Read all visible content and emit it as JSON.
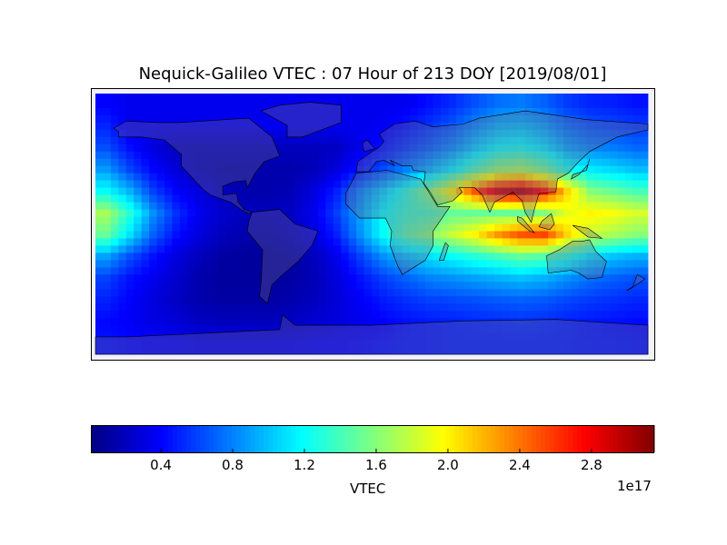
{
  "chart_data": {
    "type": "heatmap",
    "title": "Nequick-Galileo VTEC : 07 Hour of 213 DOY [2019/08/01]",
    "colormap": "jet",
    "colorbar": {
      "label": "VTEC",
      "exponent_label": "1e17",
      "range": [
        0.01,
        3.15
      ],
      "ticks": [
        "0.4",
        "0.8",
        "1.2",
        "1.6",
        "2.0",
        "2.4",
        "2.8"
      ],
      "tick_values": [
        0.4,
        0.8,
        1.2,
        1.6,
        2.0,
        2.4,
        2.8
      ],
      "orientation": "horizontal",
      "placement": "bottom"
    },
    "units_scale": 1e+17,
    "lon_range": [
      -180,
      180
    ],
    "lat_range": [
      -90,
      90
    ],
    "lon_centers": [
      -172.5,
      -157.5,
      -142.5,
      -127.5,
      -112.5,
      -97.5,
      -82.5,
      -67.5,
      -52.5,
      -37.5,
      -22.5,
      -7.5,
      7.5,
      22.5,
      37.5,
      52.5,
      67.5,
      82.5,
      97.5,
      112.5,
      127.5,
      142.5,
      157.5,
      172.5
    ],
    "lat_centers": [
      82.5,
      67.5,
      52.5,
      37.5,
      22.5,
      7.5,
      -7.5,
      -22.5,
      -37.5,
      -52.5,
      -67.5,
      -82.5
    ],
    "values": [
      [
        0.4,
        0.35,
        0.35,
        0.35,
        0.35,
        0.35,
        0.35,
        0.35,
        0.35,
        0.35,
        0.35,
        0.35,
        0.35,
        0.36,
        0.44,
        0.53,
        0.65,
        0.75,
        0.78,
        0.7,
        0.58,
        0.51,
        0.49,
        0.45
      ],
      [
        0.51,
        0.35,
        0.35,
        0.35,
        0.35,
        0.35,
        0.35,
        0.35,
        0.35,
        0.35,
        0.35,
        0.35,
        0.37,
        0.46,
        0.56,
        0.67,
        0.83,
        0.96,
        0.99,
        0.9,
        0.74,
        0.66,
        0.62,
        0.58
      ],
      [
        0.64,
        0.44,
        0.3,
        0.2,
        0.2,
        0.2,
        0.2,
        0.2,
        0.2,
        0.2,
        0.22,
        0.34,
        0.46,
        0.58,
        0.7,
        0.84,
        1.04,
        1.2,
        1.24,
        1.12,
        0.92,
        0.82,
        0.78,
        0.72
      ],
      [
        0.88,
        0.61,
        0.41,
        0.28,
        0.19,
        0.15,
        0.15,
        0.15,
        0.15,
        0.19,
        0.3,
        0.47,
        0.63,
        0.8,
        0.96,
        1.16,
        1.43,
        1.65,
        1.71,
        1.54,
        1.27,
        1.13,
        1.07,
        0.99
      ],
      [
        1.2,
        0.95,
        0.6,
        0.4,
        0.3,
        0.2,
        0.15,
        0.15,
        0.18,
        0.3,
        0.5,
        0.8,
        1.05,
        1.3,
        1.6,
        2.0,
        2.5,
        2.9,
        3.0,
        2.7,
        2.1,
        1.6,
        1.5,
        1.4
      ],
      [
        1.7,
        1.3,
        0.85,
        0.55,
        0.35,
        0.25,
        0.2,
        0.2,
        0.22,
        0.35,
        0.6,
        0.9,
        1.2,
        1.35,
        1.4,
        1.5,
        1.5,
        1.5,
        1.5,
        1.6,
        1.9,
        2.0,
        1.95,
        1.85
      ],
      [
        1.5,
        1.1,
        0.7,
        0.45,
        0.3,
        0.2,
        0.15,
        0.15,
        0.2,
        0.3,
        0.5,
        0.85,
        1.2,
        1.45,
        1.6,
        1.8,
        2.0,
        2.3,
        2.5,
        2.55,
        2.1,
        1.8,
        1.7,
        1.6
      ],
      [
        0.9,
        0.65,
        0.45,
        0.3,
        0.2,
        0.12,
        0.1,
        0.1,
        0.12,
        0.2,
        0.35,
        0.6,
        0.85,
        1.0,
        1.1,
        1.2,
        1.3,
        1.4,
        1.5,
        1.45,
        1.3,
        1.1,
        1.0,
        0.95
      ],
      [
        0.6,
        0.45,
        0.35,
        0.25,
        0.15,
        0.1,
        0.1,
        0.1,
        0.12,
        0.18,
        0.3,
        0.45,
        0.6,
        0.7,
        0.8,
        0.85,
        0.9,
        0.95,
        1.0,
        0.95,
        0.85,
        0.75,
        0.7,
        0.65
      ],
      [
        0.5,
        0.4,
        0.3,
        0.22,
        0.15,
        0.12,
        0.12,
        0.12,
        0.15,
        0.2,
        0.28,
        0.38,
        0.48,
        0.55,
        0.6,
        0.62,
        0.65,
        0.68,
        0.7,
        0.68,
        0.62,
        0.58,
        0.55,
        0.52
      ],
      [
        0.42,
        0.38,
        0.32,
        0.28,
        0.22,
        0.2,
        0.2,
        0.2,
        0.22,
        0.26,
        0.3,
        0.35,
        0.4,
        0.45,
        0.48,
        0.5,
        0.52,
        0.53,
        0.55,
        0.53,
        0.5,
        0.47,
        0.45,
        0.43
      ],
      [
        0.45,
        0.42,
        0.4,
        0.38,
        0.36,
        0.35,
        0.35,
        0.35,
        0.36,
        0.38,
        0.4,
        0.42,
        0.45,
        0.47,
        0.48,
        0.5,
        0.5,
        0.5,
        0.5,
        0.5,
        0.49,
        0.48,
        0.47,
        0.46
      ]
    ],
    "grid": false
  }
}
